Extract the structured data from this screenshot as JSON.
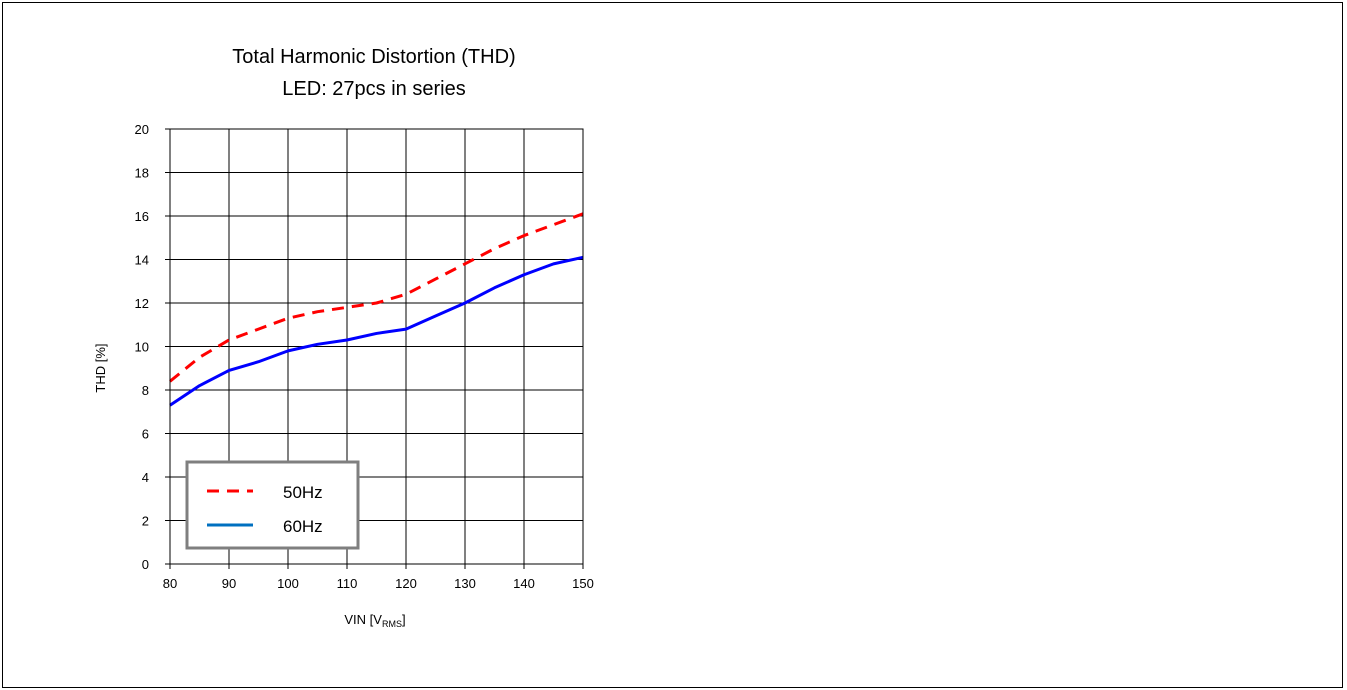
{
  "chart_data": {
    "type": "line",
    "title": "Total Harmonic Distortion (THD)",
    "subtitle": "LED: 27pcs in series",
    "xlabel": "VIN [V",
    "xlabel_sub": "RMS",
    "xlabel_close": "]",
    "ylabel": "THD [%]",
    "xlim": [
      80,
      150
    ],
    "ylim": [
      0,
      20
    ],
    "xticks": [
      80,
      90,
      100,
      110,
      120,
      130,
      140,
      150
    ],
    "yticks": [
      0,
      2,
      4,
      6,
      8,
      10,
      12,
      14,
      16,
      18,
      20
    ],
    "grid": true,
    "legend_position": "bottom-left",
    "series": [
      {
        "name": "50Hz",
        "color": "#ff0000",
        "style": "dashed",
        "x": [
          80,
          85,
          90,
          95,
          100,
          105,
          110,
          115,
          120,
          125,
          130,
          135,
          140,
          145,
          150
        ],
        "y": [
          8.4,
          9.5,
          10.3,
          10.8,
          11.3,
          11.6,
          11.8,
          12.0,
          12.4,
          13.1,
          13.8,
          14.5,
          15.1,
          15.6,
          16.1
        ]
      },
      {
        "name": "60Hz",
        "color": "#0000ff",
        "legend_color": "#0070c0",
        "style": "solid",
        "x": [
          80,
          85,
          90,
          95,
          100,
          105,
          110,
          115,
          120,
          125,
          130,
          135,
          140,
          145,
          150
        ],
        "y": [
          7.3,
          8.2,
          8.9,
          9.3,
          9.8,
          10.1,
          10.3,
          10.6,
          10.8,
          11.4,
          12.0,
          12.7,
          13.3,
          13.8,
          14.1
        ]
      }
    ]
  }
}
